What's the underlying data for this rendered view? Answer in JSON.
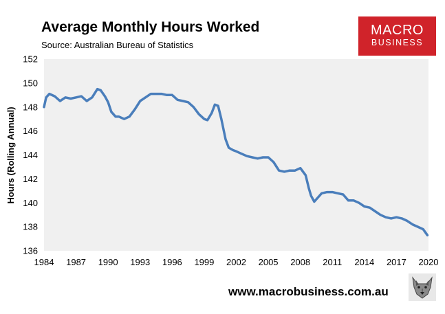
{
  "header": {
    "title": "Average Monthly Hours Worked",
    "subtitle": "Source: Australian Bureau of Statistics"
  },
  "logo": {
    "line1": "MACRO",
    "line2": "BUSINESS",
    "color": "#d0232a"
  },
  "footer": {
    "url": "www.macrobusiness.com.au"
  },
  "chart_data": {
    "type": "line",
    "title": "Average Monthly Hours Worked",
    "ylabel": "Hours (Rolling Annual)",
    "xlabel": "",
    "xlim": [
      1984,
      2020
    ],
    "ylim": [
      136,
      152
    ],
    "x_ticks": [
      "1984",
      "1987",
      "1990",
      "1993",
      "1996",
      "1999",
      "2002",
      "2005",
      "2008",
      "2011",
      "2014",
      "2017",
      "2020"
    ],
    "y_ticks": [
      "136",
      "138",
      "140",
      "142",
      "144",
      "146",
      "148",
      "150",
      "152"
    ],
    "grid": false,
    "legend": "none",
    "line_color": "#4a7ebb",
    "plot_background": "#f0f0f0",
    "series": [
      {
        "x": [
          1984.0,
          1984.2,
          1984.5,
          1985.0,
          1985.5,
          1986.0,
          1986.5,
          1987.0,
          1987.5,
          1988.0,
          1988.5,
          1989.0,
          1989.3,
          1989.7,
          1990.0,
          1990.3,
          1990.7,
          1991.0,
          1991.5,
          1992.0,
          1992.5,
          1993.0,
          1993.5,
          1994.0,
          1994.5,
          1995.0,
          1995.5,
          1996.0,
          1996.5,
          1997.0,
          1997.5,
          1998.0,
          1998.5,
          1999.0,
          1999.3,
          1999.7,
          2000.0,
          2000.3,
          2000.6,
          2001.0,
          2001.3,
          2001.7,
          2002.0,
          2002.5,
          2003.0,
          2003.5,
          2004.0,
          2004.5,
          2005.0,
          2005.5,
          2006.0,
          2006.5,
          2007.0,
          2007.5,
          2008.0,
          2008.5,
          2008.8,
          2009.0,
          2009.3,
          2009.7,
          2010.0,
          2010.5,
          2011.0,
          2011.5,
          2012.0,
          2012.5,
          2013.0,
          2013.5,
          2014.0,
          2014.5,
          2015.0,
          2015.5,
          2016.0,
          2016.5,
          2017.0,
          2017.5,
          2018.0,
          2018.5,
          2019.0,
          2019.5,
          2019.9
        ],
        "y": [
          148.0,
          148.8,
          149.1,
          148.9,
          148.5,
          148.8,
          148.7,
          148.8,
          148.9,
          148.5,
          148.8,
          149.5,
          149.4,
          148.9,
          148.4,
          147.6,
          147.2,
          147.2,
          147.0,
          147.2,
          147.8,
          148.5,
          148.8,
          149.1,
          149.1,
          149.1,
          149.0,
          149.0,
          148.6,
          148.5,
          148.4,
          148.0,
          147.4,
          147.0,
          146.9,
          147.5,
          148.2,
          148.1,
          147.0,
          145.3,
          144.6,
          144.4,
          144.3,
          144.1,
          143.9,
          143.8,
          143.7,
          143.8,
          143.8,
          143.4,
          142.7,
          142.6,
          142.7,
          142.7,
          142.9,
          142.3,
          141.2,
          140.6,
          140.1,
          140.5,
          140.8,
          140.9,
          140.9,
          140.8,
          140.7,
          140.2,
          140.2,
          140.0,
          139.7,
          139.6,
          139.3,
          139.0,
          138.8,
          138.7,
          138.8,
          138.7,
          138.5,
          138.2,
          138.0,
          137.8,
          137.3
        ]
      }
    ]
  }
}
